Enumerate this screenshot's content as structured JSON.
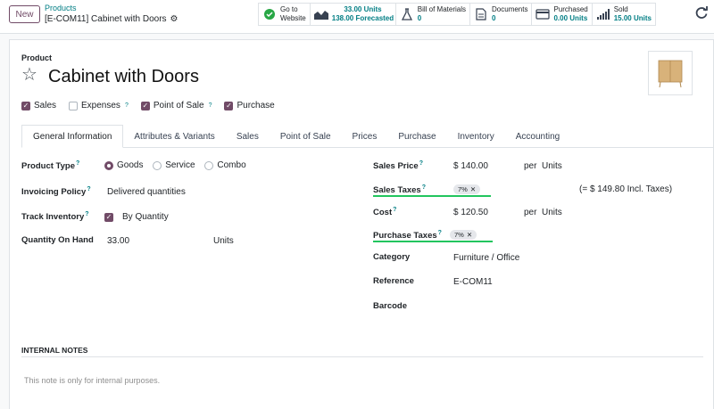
{
  "header": {
    "new_label": "New",
    "breadcrumb_parent": "Products",
    "breadcrumb_current": "[E-COM11] Cabinet with Doors"
  },
  "stats": {
    "website": {
      "line1": "Go to",
      "line2": "Website"
    },
    "units": {
      "value": "33.00 Units",
      "sub": "138.00 Forecasted"
    },
    "bom": {
      "label": "Bill of Materials",
      "value": "0"
    },
    "documents": {
      "label": "Documents",
      "value": "0"
    },
    "purchased": {
      "label": "Purchased",
      "value": "0.00 Units"
    },
    "sold": {
      "label": "Sold",
      "value": "15.00 Units"
    }
  },
  "product": {
    "label": "Product",
    "name": "Cabinet with Doors"
  },
  "checkboxes": [
    {
      "label": "Sales",
      "checked": true,
      "help": false
    },
    {
      "label": "Expenses",
      "checked": false,
      "help": true
    },
    {
      "label": "Point of Sale",
      "checked": true,
      "help": true
    },
    {
      "label": "Purchase",
      "checked": true,
      "help": false
    }
  ],
  "tabs": [
    "General Information",
    "Attributes & Variants",
    "Sales",
    "Point of Sale",
    "Prices",
    "Purchase",
    "Inventory",
    "Accounting"
  ],
  "left": {
    "product_type_label": "Product Type",
    "types": [
      "Goods",
      "Service",
      "Combo"
    ],
    "selected_type": "Goods",
    "invoicing_label": "Invoicing Policy",
    "invoicing_value": "Delivered quantities",
    "track_label": "Track Inventory",
    "track_value": "By Quantity",
    "qty_label": "Quantity On Hand",
    "qty_value": "33.00",
    "qty_unit": "Units"
  },
  "right": {
    "sales_price_label": "Sales Price",
    "sales_price": "$ 140.00",
    "per_units": "per  Units",
    "sales_taxes_label": "Sales Taxes",
    "sales_tax_tag": "7%",
    "incl_taxes": "(= $ 149.80 Incl. Taxes)",
    "cost_label": "Cost",
    "cost": "$ 120.50",
    "purchase_taxes_label": "Purchase Taxes",
    "purchase_tax_tag": "7%",
    "category_label": "Category",
    "category": "Furniture / Office",
    "reference_label": "Reference",
    "reference": "E-COM11",
    "barcode_label": "Barcode"
  },
  "notes": {
    "label": "INTERNAL NOTES",
    "placeholder": "This note is only for internal purposes."
  },
  "colors": {
    "accent": "#714b67",
    "teal": "#017e84",
    "highlight": "#22c55e"
  }
}
